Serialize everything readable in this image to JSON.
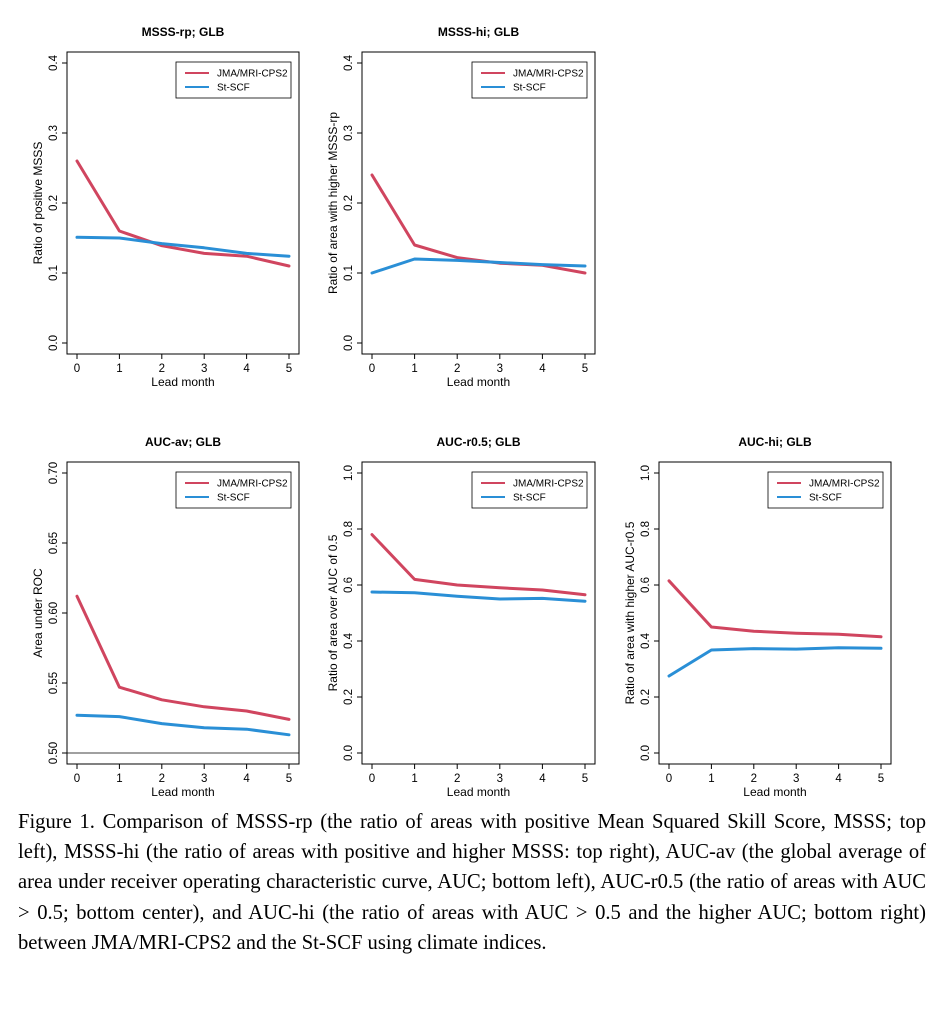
{
  "caption": {
    "text": "Figure 1. Comparison of MSSS-rp (the ratio of areas with positive Mean Squared Skill Score, MSSS; top left), MSSS-hi (the ratio of areas with positive and higher MSSS: top right), AUC-av (the global average of area under receiver operating characteristic curve, AUC; bottom left), AUC-r0.5 (the ratio of areas with AUC > 0.5; bottom center), and AUC-hi (the ratio of areas with AUC > 0.5 and the higher AUC; bottom right) between JMA/MRI-CPS2 and the St-SCF using climate indices."
  },
  "colors": {
    "JMA/MRI-CPS2": "#d0455f",
    "St-SCF": "#2a8fd6"
  },
  "chart_data": [
    {
      "type": "line",
      "title": "MSSS-rp; GLB",
      "xlabel": "Lead month",
      "ylabel": "Ratio of positive MSSS",
      "x": [
        0,
        1,
        2,
        3,
        4,
        5
      ],
      "xticks": [
        "0",
        "1",
        "2",
        "3",
        "4",
        "5"
      ],
      "ylim": [
        0.0,
        0.4
      ],
      "yticks": [
        "0.0",
        "0.1",
        "0.2",
        "0.3",
        "0.4"
      ],
      "legend": "top-right",
      "series": [
        {
          "name": "JMA/MRI-CPS2",
          "values": [
            0.26,
            0.16,
            0.139,
            0.128,
            0.124,
            0.11
          ]
        },
        {
          "name": "St-SCF",
          "values": [
            0.151,
            0.15,
            0.142,
            0.136,
            0.128,
            0.124
          ]
        }
      ]
    },
    {
      "type": "line",
      "title": "MSSS-hi; GLB",
      "xlabel": "Lead month",
      "ylabel": "Ratio of area with higher MSSS-rp",
      "x": [
        0,
        1,
        2,
        3,
        4,
        5
      ],
      "xticks": [
        "0",
        "1",
        "2",
        "3",
        "4",
        "5"
      ],
      "ylim": [
        0.0,
        0.4
      ],
      "yticks": [
        "0.0",
        "0.1",
        "0.2",
        "0.3",
        "0.4"
      ],
      "legend": "top-right",
      "series": [
        {
          "name": "JMA/MRI-CPS2",
          "values": [
            0.24,
            0.14,
            0.122,
            0.114,
            0.111,
            0.1
          ]
        },
        {
          "name": "St-SCF",
          "values": [
            0.1,
            0.12,
            0.118,
            0.115,
            0.112,
            0.11
          ]
        }
      ]
    },
    {
      "type": "line",
      "title": "AUC-av; GLB",
      "xlabel": "Lead month",
      "ylabel": "Area under ROC",
      "x": [
        0,
        1,
        2,
        3,
        4,
        5
      ],
      "xticks": [
        "0",
        "1",
        "2",
        "3",
        "4",
        "5"
      ],
      "ylim": [
        0.5,
        0.7
      ],
      "yticks": [
        "0.50",
        "0.55",
        "0.60",
        "0.65",
        "0.70"
      ],
      "hline": 0.5,
      "legend": "top-right",
      "series": [
        {
          "name": "JMA/MRI-CPS2",
          "values": [
            0.612,
            0.547,
            0.538,
            0.533,
            0.53,
            0.524
          ]
        },
        {
          "name": "St-SCF",
          "values": [
            0.527,
            0.526,
            0.521,
            0.518,
            0.517,
            0.513
          ]
        }
      ]
    },
    {
      "type": "line",
      "title": "AUC-r0.5; GLB",
      "xlabel": "Lead month",
      "ylabel": "Ratio of area over AUC of 0.5",
      "x": [
        0,
        1,
        2,
        3,
        4,
        5
      ],
      "xticks": [
        "0",
        "1",
        "2",
        "3",
        "4",
        "5"
      ],
      "ylim": [
        0.0,
        1.0
      ],
      "yticks": [
        "0.0",
        "0.2",
        "0.4",
        "0.6",
        "0.8",
        "1.0"
      ],
      "legend": "top-right",
      "series": [
        {
          "name": "JMA/MRI-CPS2",
          "values": [
            0.78,
            0.62,
            0.6,
            0.59,
            0.582,
            0.565
          ]
        },
        {
          "name": "St-SCF",
          "values": [
            0.575,
            0.572,
            0.56,
            0.55,
            0.552,
            0.542
          ]
        }
      ]
    },
    {
      "type": "line",
      "title": "AUC-hi; GLB",
      "xlabel": "Lead month",
      "ylabel": "Ratio of area with higher AUC-r0.5",
      "x": [
        0,
        1,
        2,
        3,
        4,
        5
      ],
      "xticks": [
        "0",
        "1",
        "2",
        "3",
        "4",
        "5"
      ],
      "ylim": [
        0.0,
        1.0
      ],
      "yticks": [
        "0.0",
        "0.2",
        "0.4",
        "0.6",
        "0.8",
        "1.0"
      ],
      "legend": "top-right",
      "series": [
        {
          "name": "JMA/MRI-CPS2",
          "values": [
            0.615,
            0.45,
            0.435,
            0.428,
            0.424,
            0.415
          ]
        },
        {
          "name": "St-SCF",
          "values": [
            0.275,
            0.368,
            0.373,
            0.371,
            0.376,
            0.374
          ]
        }
      ]
    }
  ]
}
